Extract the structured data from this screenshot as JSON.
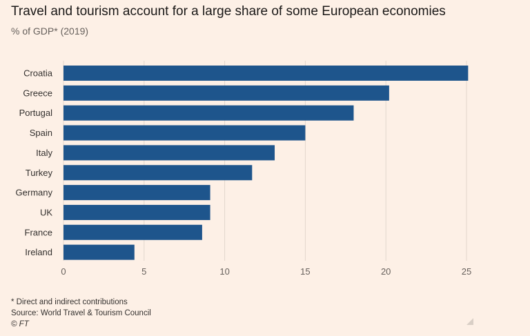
{
  "header": {
    "title": "Travel and tourism account for a large share of some European economies",
    "subtitle": "% of GDP* (2019)"
  },
  "footer": {
    "note": "* Direct and indirect contributions",
    "source": "Source: World Travel & Tourism Council",
    "credit": "© FT"
  },
  "colors": {
    "background": "#fdf0e6",
    "bar": "#1e558c",
    "grid": "#e2d6cc"
  },
  "chart_data": {
    "type": "bar",
    "orientation": "horizontal",
    "title": "Travel and tourism account for a large share of some European economies",
    "subtitle": "% of GDP* (2019)",
    "categories": [
      "Croatia",
      "Greece",
      "Portugal",
      "Spain",
      "Italy",
      "Turkey",
      "Germany",
      "UK",
      "France",
      "Ireland"
    ],
    "values": [
      25.1,
      20.2,
      18.0,
      15.0,
      13.1,
      11.7,
      9.1,
      9.1,
      8.6,
      4.4
    ],
    "xlim": [
      0,
      25
    ],
    "xticks": [
      0,
      5,
      10,
      15,
      20,
      25
    ],
    "grid": true,
    "legend": "none"
  }
}
